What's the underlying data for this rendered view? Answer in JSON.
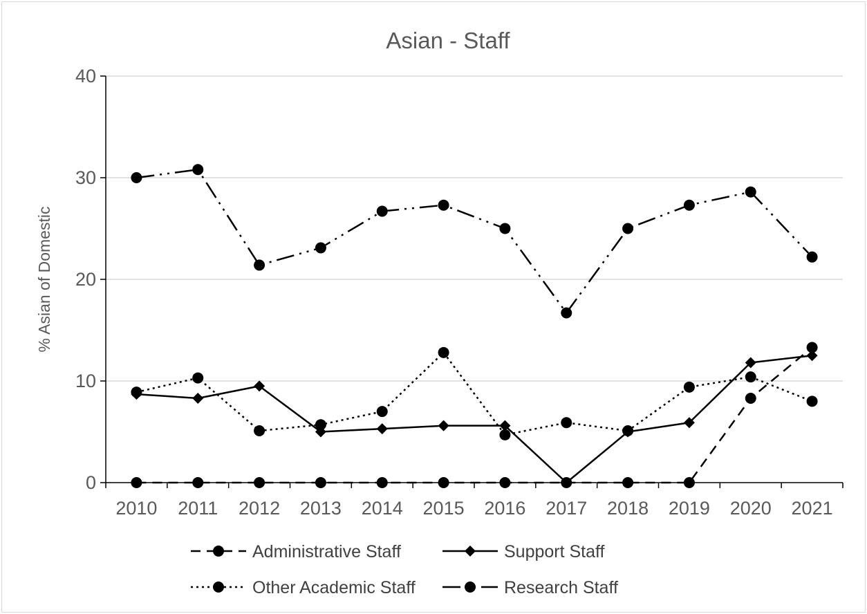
{
  "chart_data": {
    "type": "line",
    "title": "Asian - Staff",
    "xlabel": "",
    "ylabel": "% Asian of Domestic",
    "ylim": [
      0,
      40
    ],
    "yticks": [
      0,
      10,
      20,
      30,
      40
    ],
    "grid": true,
    "legend_position": "bottom",
    "categories": [
      "2010",
      "2011",
      "2012",
      "2013",
      "2014",
      "2015",
      "2016",
      "2017",
      "2018",
      "2019",
      "2020",
      "2021"
    ],
    "series": [
      {
        "name": "Administrative Staff",
        "line_style": "dashed",
        "marker": "circle",
        "values": [
          0,
          0,
          0,
          0,
          0,
          0,
          0,
          0,
          0,
          0,
          8.3,
          13.3
        ]
      },
      {
        "name": "Support Staff",
        "line_style": "solid",
        "marker": "diamond",
        "values": [
          8.7,
          8.3,
          9.5,
          5.0,
          5.3,
          5.6,
          5.6,
          0,
          5.0,
          5.9,
          11.8,
          12.5
        ]
      },
      {
        "name": "Other Academic Staff",
        "line_style": "dotted",
        "marker": "circle",
        "values": [
          8.9,
          10.3,
          5.1,
          5.7,
          7.0,
          12.8,
          4.7,
          5.9,
          5.1,
          9.4,
          10.4,
          8.0
        ]
      },
      {
        "name": "Research Staff",
        "line_style": "long-dash-dot-dot",
        "marker": "circle",
        "values": [
          30.0,
          30.8,
          21.4,
          23.1,
          26.7,
          27.3,
          25.0,
          16.7,
          25.0,
          27.3,
          28.6,
          22.2
        ]
      }
    ],
    "colors": {
      "line": "#000000",
      "grid": "#d9d9d9",
      "axis": "#000000",
      "text": "#595959"
    }
  }
}
